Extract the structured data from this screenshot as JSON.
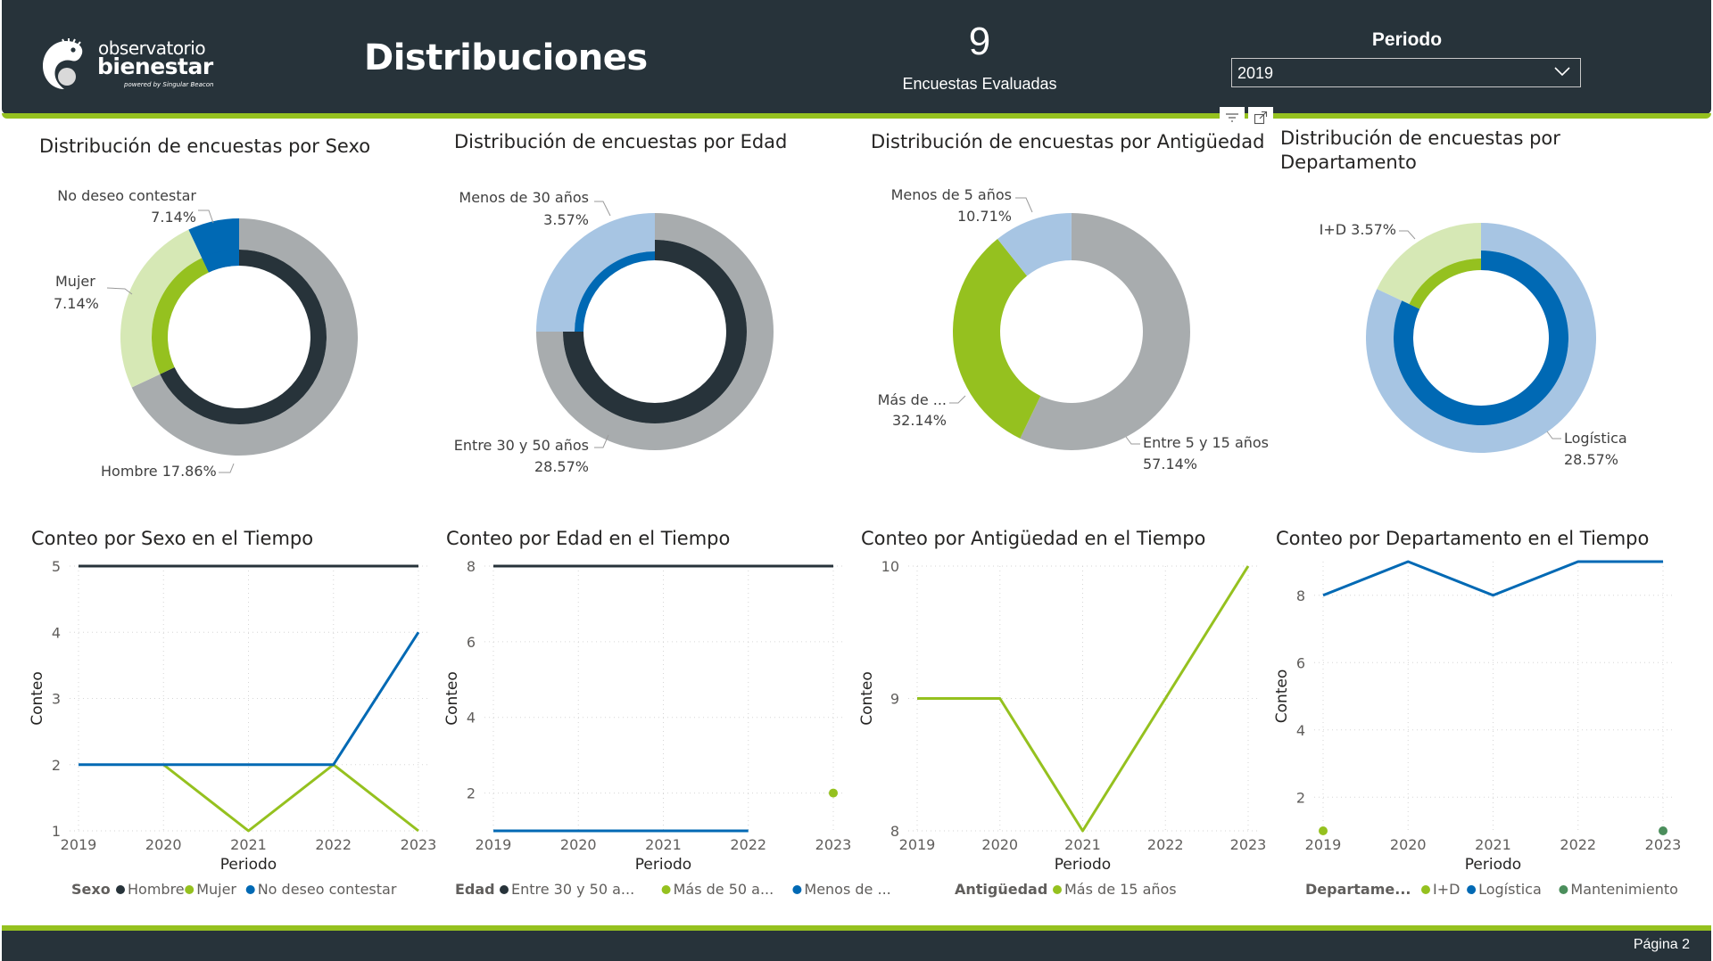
{
  "header": {
    "logo": {
      "line1": "observatorio",
      "line2": "bienestar",
      "line3": "powered by Singular Beacon",
      "icon": "chameleon-logo-icon"
    },
    "title": "Distribuciones",
    "kpi": {
      "value": "9",
      "label": "Encuestas Evaluadas"
    },
    "slicer": {
      "title": "Periodo",
      "value": "2019",
      "icon": "chevron-down-icon"
    },
    "visual_icons": [
      "filter-icon",
      "focus-mode-icon"
    ]
  },
  "colors": {
    "header_bg": "#27333a",
    "accent_green": "#95c11f",
    "gray": "#a8acae",
    "navy": "#27333a",
    "blue": "#0069b4",
    "light_green": "#d6e8b5",
    "light_blue": "#a7c5e3",
    "dark_green": "#4b8e5c"
  },
  "footer": {
    "page": "Página 2"
  },
  "chart_data": [
    {
      "type": "pie",
      "variant": "nested-donut",
      "title": "Distribución de encuestas por Sexo",
      "outer": [
        {
          "name": "Hombre",
          "label": "Hombre 17.86%",
          "percent": 17.86,
          "share": 0.68,
          "color": "#a8acae"
        },
        {
          "name": "Mujer",
          "label": "Mujer",
          "label2": "7.14%",
          "percent": 7.14,
          "share": 0.25,
          "color": "#d6e8b5"
        },
        {
          "name": "No deseo contestar",
          "label": "No deseo contestar",
          "label2": "7.14%",
          "percent": 7.14,
          "share": 0.07,
          "color": "#0069b4"
        }
      ],
      "inner": [
        {
          "name": "Hombre",
          "share": 0.68,
          "color": "#27333a"
        },
        {
          "name": "Mujer",
          "share": 0.25,
          "color": "#95c11f"
        },
        {
          "name": "No deseo contestar",
          "share": 0.07,
          "color": "#0069b4"
        }
      ]
    },
    {
      "type": "pie",
      "variant": "nested-donut",
      "title": "Distribución de encuestas por Edad",
      "outer": [
        {
          "name": "Entre 30 y 50 años",
          "label": "Entre 30 y 50 años",
          "label2": "28.57%",
          "percent": 28.57,
          "share": 0.75,
          "color": "#a8acae"
        },
        {
          "name": "Menos de 30 años",
          "label": "Menos de 30 años",
          "label2": "3.57%",
          "percent": 3.57,
          "share": 0.25,
          "color": "#a7c5e3"
        }
      ],
      "inner": [
        {
          "name": "Entre 30 y 50 años",
          "share": 0.75,
          "color": "#27333a"
        },
        {
          "name": "Menos de 30 años",
          "share": 0.25,
          "color": "#0069b4"
        }
      ]
    },
    {
      "type": "pie",
      "variant": "donut",
      "title": "Distribución de encuestas por Antigüedad",
      "outer": [
        {
          "name": "Entre 5 y 15 años",
          "label": "Entre 5 y 15 años",
          "label2": "57.14%",
          "percent": 57.14,
          "share": 0.5714,
          "color": "#a8acae"
        },
        {
          "name": "Más de 15 años",
          "label": "Más de ...",
          "label2": "32.14%",
          "percent": 32.14,
          "share": 0.3214,
          "color": "#95c11f"
        },
        {
          "name": "Menos de 5 años",
          "label": "Menos de 5 años",
          "label2": "10.71%",
          "percent": 10.71,
          "share": 0.1071,
          "color": "#a7c5e3"
        }
      ]
    },
    {
      "type": "pie",
      "variant": "nested-donut",
      "title": "Distribución de encuestas por Departamento",
      "outer": [
        {
          "name": "Logística",
          "label": "Logística",
          "label2": "28.57%",
          "percent": 28.57,
          "share": 0.82,
          "color": "#a7c5e3"
        },
        {
          "name": "I+D",
          "label": "I+D 3.57%",
          "percent": 3.57,
          "share": 0.18,
          "color": "#d6e8b5"
        }
      ],
      "inner": [
        {
          "name": "Logística",
          "share": 0.82,
          "color": "#0069b4"
        },
        {
          "name": "I+D",
          "share": 0.18,
          "color": "#95c11f"
        }
      ]
    },
    {
      "type": "line",
      "title": "Conteo por Sexo en el Tiempo",
      "xlabel": "Periodo",
      "ylabel": "Conteo",
      "x": [
        "2019",
        "2020",
        "2021",
        "2022",
        "2023"
      ],
      "ylim": [
        1,
        5
      ],
      "yticks": [
        1,
        2,
        3,
        4,
        5
      ],
      "legend_title": "Sexo",
      "legend_position": "bottom",
      "grid": true,
      "series": [
        {
          "name": "Hombre",
          "color": "#27333a",
          "values": [
            5,
            5,
            5,
            5,
            5
          ]
        },
        {
          "name": "Mujer",
          "color": "#95c11f",
          "values": [
            null,
            2,
            1,
            2,
            1
          ]
        },
        {
          "name": "No deseo contestar",
          "color": "#0069b4",
          "values": [
            2,
            2,
            2,
            2,
            4
          ]
        }
      ]
    },
    {
      "type": "line",
      "title": "Conteo por Edad en el Tiempo",
      "xlabel": "Periodo",
      "ylabel": "Conteo",
      "x": [
        "2019",
        "2020",
        "2021",
        "2022",
        "2023"
      ],
      "ylim": [
        1,
        8
      ],
      "yticks": [
        2,
        4,
        6,
        8
      ],
      "legend_title": "Edad",
      "legend_position": "bottom",
      "grid": true,
      "series": [
        {
          "name": "Entre 30 y 50 a...",
          "color": "#27333a",
          "values": [
            8,
            8,
            8,
            8,
            8
          ]
        },
        {
          "name": "Más de 50 a...",
          "color": "#95c11f",
          "values": [
            null,
            null,
            null,
            null,
            2
          ]
        },
        {
          "name": "Menos de ...",
          "color": "#0069b4",
          "values": [
            1,
            1,
            1,
            1,
            null
          ]
        }
      ]
    },
    {
      "type": "line",
      "title": "Conteo por Antigüedad en el Tiempo",
      "xlabel": "Periodo",
      "ylabel": "Conteo",
      "x": [
        "2019",
        "2020",
        "2021",
        "2022",
        "2023"
      ],
      "ylim": [
        8,
        10
      ],
      "yticks": [
        8,
        9,
        10
      ],
      "legend_title": "Antigüedad",
      "legend_position": "bottom",
      "grid": true,
      "series": [
        {
          "name": "Más de 15 años",
          "color": "#95c11f",
          "values": [
            9,
            9,
            8,
            9,
            10
          ]
        }
      ]
    },
    {
      "type": "line",
      "title": "Conteo por Departamento en el Tiempo",
      "xlabel": "Periodo",
      "ylabel": "Conteo",
      "x": [
        "2019",
        "2020",
        "2021",
        "2022",
        "2023"
      ],
      "ylim": [
        1,
        9
      ],
      "yticks": [
        2,
        4,
        6,
        8
      ],
      "legend_title": "Departame...",
      "legend_position": "bottom",
      "grid": true,
      "series": [
        {
          "name": "I+D",
          "color": "#95c11f",
          "values": [
            1,
            null,
            null,
            null,
            null
          ]
        },
        {
          "name": "Logística",
          "color": "#0069b4",
          "values": [
            8,
            9,
            8,
            9,
            9
          ]
        },
        {
          "name": "Mantenimiento",
          "color": "#4b8e5c",
          "values": [
            null,
            null,
            null,
            null,
            1
          ]
        }
      ]
    }
  ]
}
